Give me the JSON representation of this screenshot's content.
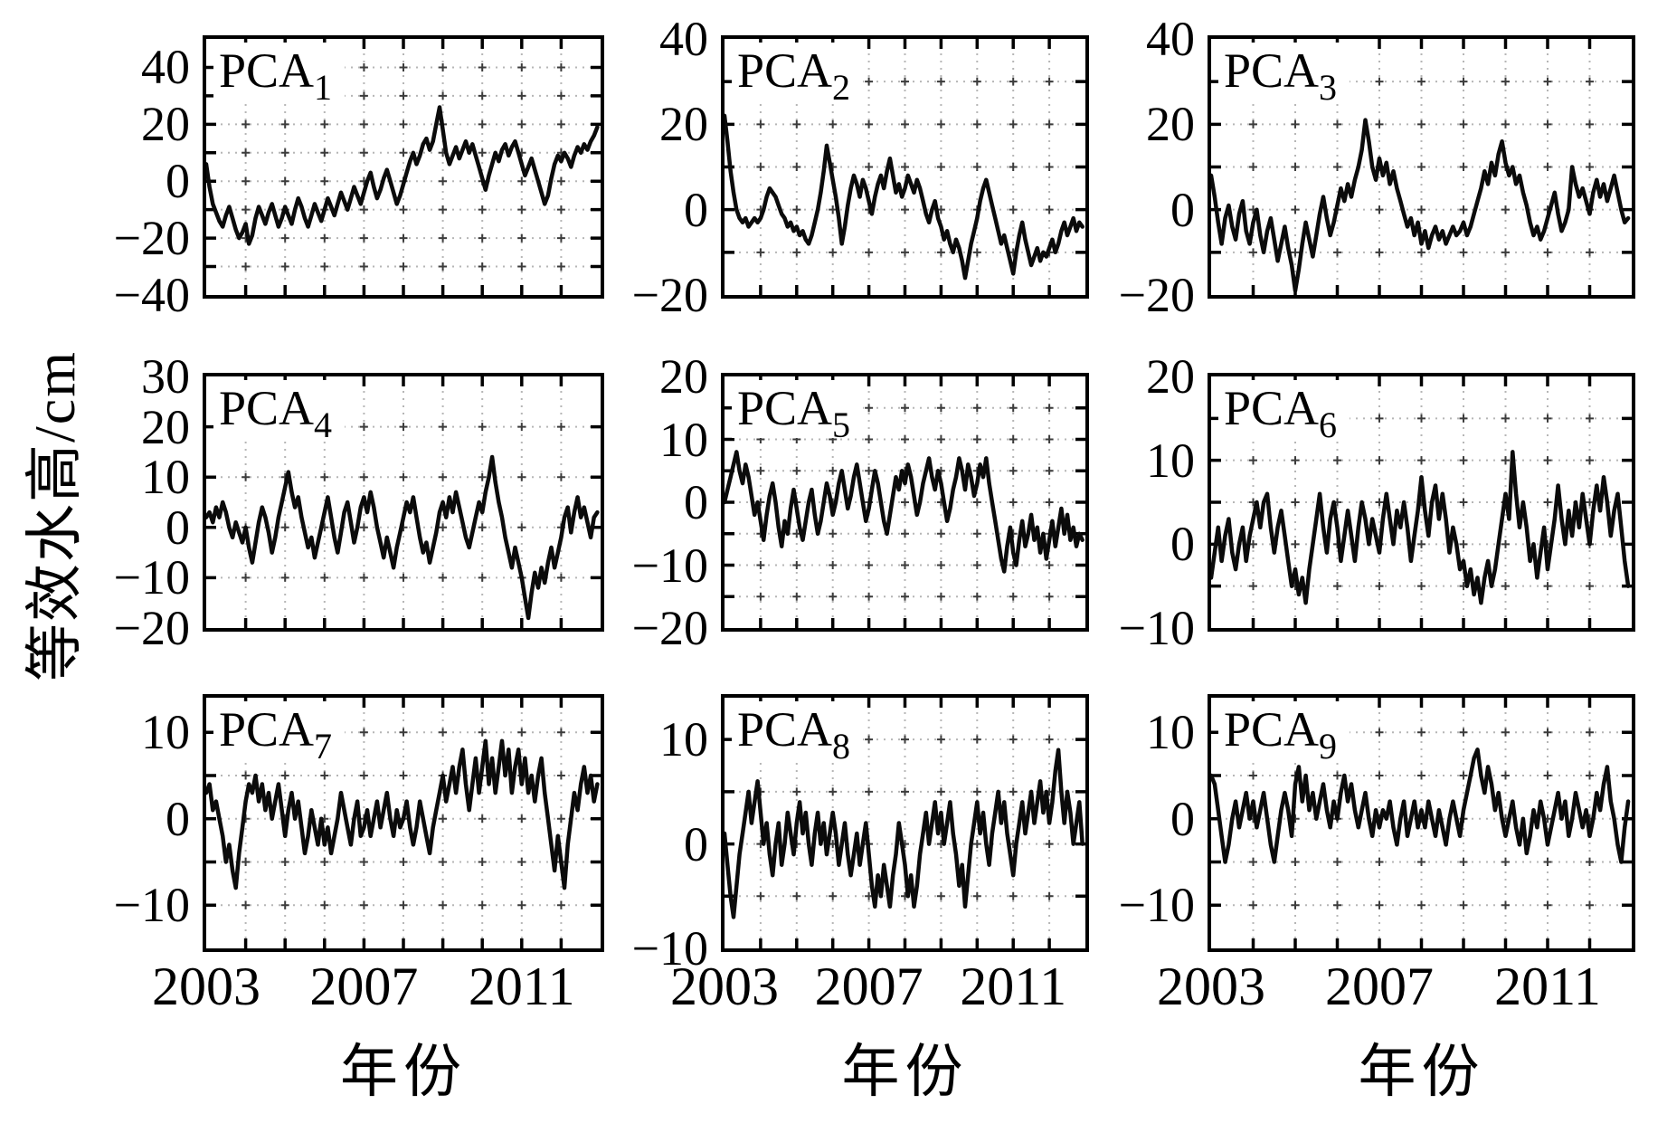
{
  "chart_data": {
    "type": "line",
    "title": "",
    "xlabel": "年份",
    "ylabel": "等效水高/cm",
    "xlim": [
      2003,
      2013
    ],
    "xtick_step_years": 1,
    "xtick_labeled": [
      2003,
      2007,
      2011
    ],
    "x_monthly_start": 2003.0,
    "x_monthly_step": 0.08333,
    "grid": true,
    "legend": "none",
    "line_color": "#0b0b0b",
    "grid_color": "#b6b6b6",
    "panels": [
      {
        "label": "PCA",
        "subscript": "1",
        "ylim": [
          -40,
          50
        ],
        "yticks": [
          40,
          20,
          0,
          -20,
          -40
        ],
        "grid_step": 10,
        "values": [
          6,
          -2,
          -8,
          -11,
          -14,
          -16,
          -12,
          -9,
          -13,
          -17,
          -20,
          -18,
          -15,
          -22,
          -19,
          -13,
          -9,
          -12,
          -15,
          -11,
          -8,
          -12,
          -16,
          -13,
          -9,
          -12,
          -15,
          -10,
          -6,
          -9,
          -13,
          -16,
          -12,
          -8,
          -11,
          -14,
          -10,
          -6,
          -9,
          -12,
          -8,
          -4,
          -7,
          -10,
          -6,
          -2,
          -5,
          -8,
          -4,
          0,
          3,
          -2,
          -6,
          -3,
          1,
          4,
          0,
          -4,
          -8,
          -5,
          -1,
          3,
          7,
          10,
          6,
          9,
          13,
          15,
          11,
          14,
          20,
          26,
          18,
          10,
          6,
          9,
          12,
          8,
          11,
          14,
          10,
          13,
          9,
          5,
          1,
          -3,
          2,
          6,
          10,
          7,
          11,
          13,
          9,
          12,
          14,
          10,
          6,
          2,
          5,
          8,
          4,
          0,
          -4,
          -8,
          -5,
          1,
          6,
          9,
          7,
          10,
          8,
          5,
          9,
          12,
          10,
          13,
          11,
          14,
          16,
          19
        ]
      },
      {
        "label": "PCA",
        "subscript": "2",
        "ylim": [
          -20,
          40
        ],
        "yticks": [
          40,
          20,
          0,
          -20
        ],
        "grid_step": 10,
        "values": [
          22,
          16,
          9,
          4,
          0,
          -2,
          -3,
          -2,
          -4,
          -3,
          -2,
          -3,
          -2,
          0,
          3,
          5,
          4,
          3,
          1,
          -1,
          -2,
          -4,
          -3,
          -5,
          -4,
          -6,
          -5,
          -7,
          -8,
          -6,
          -3,
          0,
          4,
          9,
          15,
          11,
          7,
          3,
          -2,
          -8,
          -4,
          1,
          5,
          8,
          6,
          3,
          7,
          5,
          2,
          -1,
          3,
          6,
          8,
          5,
          9,
          12,
          8,
          4,
          6,
          3,
          5,
          8,
          6,
          4,
          7,
          5,
          2,
          -1,
          -3,
          0,
          2,
          -2,
          -4,
          -7,
          -5,
          -8,
          -10,
          -7,
          -9,
          -12,
          -16,
          -12,
          -8,
          -5,
          -2,
          2,
          5,
          7,
          4,
          1,
          -2,
          -5,
          -8,
          -6,
          -9,
          -12,
          -15,
          -10,
          -6,
          -3,
          -7,
          -10,
          -13,
          -11,
          -9,
          -12,
          -10,
          -11,
          -9,
          -7,
          -10,
          -8,
          -5,
          -3,
          -6,
          -4,
          -2,
          -5,
          -3,
          -4
        ]
      },
      {
        "label": "PCA",
        "subscript": "3",
        "ylim": [
          -20,
          40
        ],
        "yticks": [
          40,
          20,
          0,
          -20
        ],
        "grid_step": 10,
        "values": [
          8,
          3,
          -3,
          -8,
          -2,
          1,
          -4,
          -7,
          -1,
          2,
          -5,
          -8,
          -3,
          0,
          -6,
          -10,
          -5,
          -2,
          -7,
          -12,
          -8,
          -4,
          -9,
          -13,
          -19,
          -14,
          -8,
          -3,
          -7,
          -11,
          -6,
          -1,
          3,
          -2,
          -6,
          -3,
          1,
          5,
          2,
          6,
          3,
          7,
          10,
          14,
          21,
          16,
          10,
          7,
          12,
          8,
          11,
          6,
          9,
          5,
          2,
          -1,
          -4,
          -2,
          -6,
          -3,
          -8,
          -5,
          -9,
          -6,
          -4,
          -7,
          -5,
          -8,
          -6,
          -4,
          -6,
          -5,
          -3,
          -6,
          -4,
          -1,
          2,
          5,
          9,
          6,
          11,
          8,
          13,
          16,
          11,
          8,
          10,
          6,
          8,
          4,
          1,
          -3,
          -6,
          -4,
          -7,
          -5,
          -2,
          1,
          4,
          -1,
          -5,
          -3,
          0,
          10,
          6,
          3,
          5,
          2,
          -1,
          4,
          7,
          3,
          6,
          2,
          5,
          8,
          4,
          0,
          -3,
          -2
        ]
      },
      {
        "label": "PCA",
        "subscript": "4",
        "ylim": [
          -20,
          30
        ],
        "yticks": [
          30,
          20,
          10,
          0,
          -10,
          -20
        ],
        "grid_step": 10,
        "values": [
          2,
          3,
          1,
          4,
          2,
          5,
          3,
          0,
          -2,
          1,
          -1,
          -3,
          0,
          -4,
          -7,
          -3,
          1,
          4,
          2,
          -1,
          -5,
          -2,
          2,
          5,
          8,
          11,
          7,
          4,
          6,
          2,
          -1,
          -4,
          -2,
          -6,
          -3,
          0,
          3,
          6,
          2,
          -2,
          -5,
          -1,
          3,
          5,
          1,
          -3,
          0,
          4,
          6,
          3,
          7,
          4,
          0,
          -3,
          -6,
          -2,
          -5,
          -8,
          -4,
          -1,
          2,
          5,
          3,
          6,
          2,
          -2,
          -5,
          -3,
          -7,
          -4,
          -1,
          3,
          5,
          2,
          6,
          3,
          7,
          4,
          1,
          -2,
          -4,
          -1,
          2,
          5,
          3,
          7,
          10,
          14,
          9,
          5,
          2,
          -2,
          -5,
          -8,
          -4,
          -7,
          -10,
          -14,
          -18,
          -13,
          -9,
          -12,
          -8,
          -11,
          -7,
          -4,
          -8,
          -5,
          -2,
          2,
          4,
          -1,
          3,
          6,
          2,
          4,
          1,
          -2,
          2,
          3
        ]
      },
      {
        "label": "PCA",
        "subscript": "5",
        "ylim": [
          -20,
          20
        ],
        "yticks": [
          20,
          10,
          0,
          -10,
          -20
        ],
        "grid_step": 5,
        "values": [
          0,
          2,
          4,
          6,
          8,
          5,
          3,
          6,
          4,
          1,
          -2,
          0,
          -3,
          -6,
          -2,
          1,
          3,
          0,
          -4,
          -7,
          -3,
          -5,
          -1,
          2,
          -1,
          -4,
          -6,
          -3,
          0,
          2,
          -2,
          -5,
          -3,
          0,
          3,
          1,
          -2,
          0,
          3,
          5,
          2,
          -1,
          1,
          4,
          6,
          3,
          0,
          -3,
          -1,
          2,
          5,
          3,
          0,
          -3,
          -5,
          -2,
          1,
          4,
          2,
          5,
          3,
          6,
          4,
          1,
          -2,
          0,
          3,
          5,
          7,
          4,
          2,
          5,
          3,
          0,
          -3,
          -1,
          2,
          4,
          7,
          5,
          2,
          6,
          4,
          1,
          3,
          6,
          4,
          7,
          3,
          0,
          -3,
          -6,
          -9,
          -11,
          -7,
          -4,
          -8,
          -10,
          -6,
          -3,
          -7,
          -5,
          -2,
          -6,
          -4,
          -8,
          -5,
          -9,
          -6,
          -3,
          -7,
          -4,
          -1,
          -5,
          -2,
          -6,
          -4,
          -7,
          -5,
          -6
        ]
      },
      {
        "label": "PCA",
        "subscript": "6",
        "ylim": [
          -10,
          20
        ],
        "yticks": [
          20,
          10,
          0,
          -10
        ],
        "grid_step": 5,
        "values": [
          -4,
          -1,
          2,
          -2,
          1,
          3,
          -1,
          -3,
          0,
          2,
          -2,
          1,
          3,
          5,
          2,
          5,
          6,
          2,
          -1,
          2,
          4,
          1,
          -2,
          -5,
          -3,
          -6,
          -4,
          -7,
          -3,
          0,
          3,
          6,
          2,
          -1,
          3,
          5,
          2,
          -2,
          1,
          4,
          1,
          -2,
          2,
          5,
          3,
          0,
          3,
          1,
          -1,
          3,
          6,
          3,
          0,
          4,
          2,
          5,
          2,
          -2,
          1,
          4,
          8,
          4,
          1,
          5,
          7,
          3,
          6,
          3,
          -1,
          2,
          0,
          -3,
          -2,
          -5,
          -3,
          -6,
          -4,
          -7,
          -4,
          -2,
          -5,
          -3,
          0,
          3,
          6,
          3,
          11,
          6,
          2,
          5,
          2,
          -2,
          0,
          -4,
          -1,
          2,
          -3,
          0,
          3,
          7,
          3,
          0,
          4,
          1,
          5,
          2,
          6,
          3,
          0,
          4,
          7,
          4,
          8,
          5,
          1,
          4,
          6,
          2,
          -2,
          -5
        ]
      },
      {
        "label": "PCA",
        "subscript": "7",
        "ylim": [
          -15,
          14
        ],
        "yticks": [
          10,
          0,
          -10
        ],
        "grid_step": 5,
        "values": [
          3,
          4,
          1,
          2,
          0,
          -2,
          -5,
          -3,
          -6,
          -8,
          -4,
          -1,
          2,
          4,
          3,
          5,
          2,
          4,
          1,
          3,
          0,
          2,
          4,
          1,
          -2,
          1,
          3,
          0,
          2,
          -1,
          -4,
          -2,
          1,
          -1,
          -3,
          0,
          -3,
          -1,
          -4,
          -2,
          0,
          3,
          1,
          -1,
          -3,
          0,
          2,
          -2,
          -1,
          1,
          -2,
          0,
          2,
          -1,
          1,
          3,
          0,
          -2,
          1,
          -1,
          0,
          2,
          -1,
          -3,
          -1,
          2,
          0,
          -2,
          -4,
          -1,
          1,
          3,
          5,
          2,
          4,
          6,
          3,
          6,
          8,
          4,
          1,
          4,
          7,
          3,
          6,
          9,
          4,
          7,
          3,
          6,
          9,
          5,
          8,
          3,
          6,
          8,
          4,
          7,
          3,
          5,
          2,
          5,
          7,
          3,
          0,
          -3,
          -6,
          -2,
          -5,
          -8,
          -3,
          0,
          3,
          1,
          4,
          6,
          3,
          5,
          2,
          4
        ]
      },
      {
        "label": "PCA",
        "subscript": "8",
        "ylim": [
          -10,
          14
        ],
        "yticks": [
          10,
          0,
          -10
        ],
        "grid_step": 5,
        "values": [
          1,
          -2,
          -5,
          -7,
          -4,
          -1,
          1,
          3,
          5,
          2,
          4,
          6,
          3,
          0,
          2,
          -1,
          -3,
          0,
          2,
          -2,
          0,
          3,
          1,
          -1,
          2,
          4,
          1,
          3,
          0,
          -2,
          1,
          3,
          0,
          2,
          -1,
          1,
          3,
          1,
          -2,
          0,
          2,
          -1,
          -3,
          -1,
          1,
          -2,
          0,
          2,
          -1,
          -4,
          -6,
          -3,
          -5,
          -2,
          -4,
          -6,
          -3,
          -1,
          2,
          0,
          -2,
          -5,
          -3,
          -6,
          -4,
          -1,
          1,
          3,
          0,
          2,
          4,
          1,
          3,
          0,
          2,
          4,
          1,
          -1,
          -4,
          -2,
          -6,
          -3,
          0,
          2,
          4,
          1,
          3,
          0,
          -2,
          1,
          3,
          5,
          2,
          4,
          1,
          -1,
          -3,
          0,
          2,
          4,
          1,
          3,
          5,
          2,
          4,
          6,
          3,
          5,
          2,
          4,
          7,
          9,
          5,
          2,
          5,
          3,
          0,
          2,
          4,
          0
        ]
      },
      {
        "label": "PCA",
        "subscript": "9",
        "ylim": [
          -15,
          14
        ],
        "yticks": [
          10,
          0,
          -10
        ],
        "grid_step": 5,
        "values": [
          5,
          4,
          1,
          -2,
          -5,
          -3,
          0,
          2,
          -1,
          1,
          3,
          0,
          2,
          -1,
          1,
          3,
          0,
          -3,
          -5,
          -2,
          1,
          3,
          1,
          -2,
          4,
          6,
          2,
          5,
          1,
          3,
          0,
          2,
          4,
          1,
          -1,
          2,
          0,
          3,
          5,
          2,
          4,
          1,
          -1,
          1,
          3,
          0,
          -2,
          1,
          -1,
          1,
          0,
          2,
          -1,
          -3,
          0,
          2,
          -2,
          0,
          2,
          -1,
          1,
          -1,
          2,
          0,
          -2,
          1,
          -1,
          -3,
          0,
          2,
          0,
          -2,
          1,
          3,
          5,
          7,
          8,
          5,
          3,
          6,
          4,
          1,
          3,
          0,
          -2,
          0,
          2,
          -1,
          -3,
          0,
          -4,
          -2,
          1,
          -1,
          2,
          0,
          -3,
          -1,
          1,
          3,
          0,
          2,
          -2,
          0,
          3,
          1,
          -1,
          1,
          -2,
          0,
          3,
          1,
          4,
          6,
          2,
          0,
          -3,
          -5,
          -1,
          2
        ]
      }
    ]
  }
}
